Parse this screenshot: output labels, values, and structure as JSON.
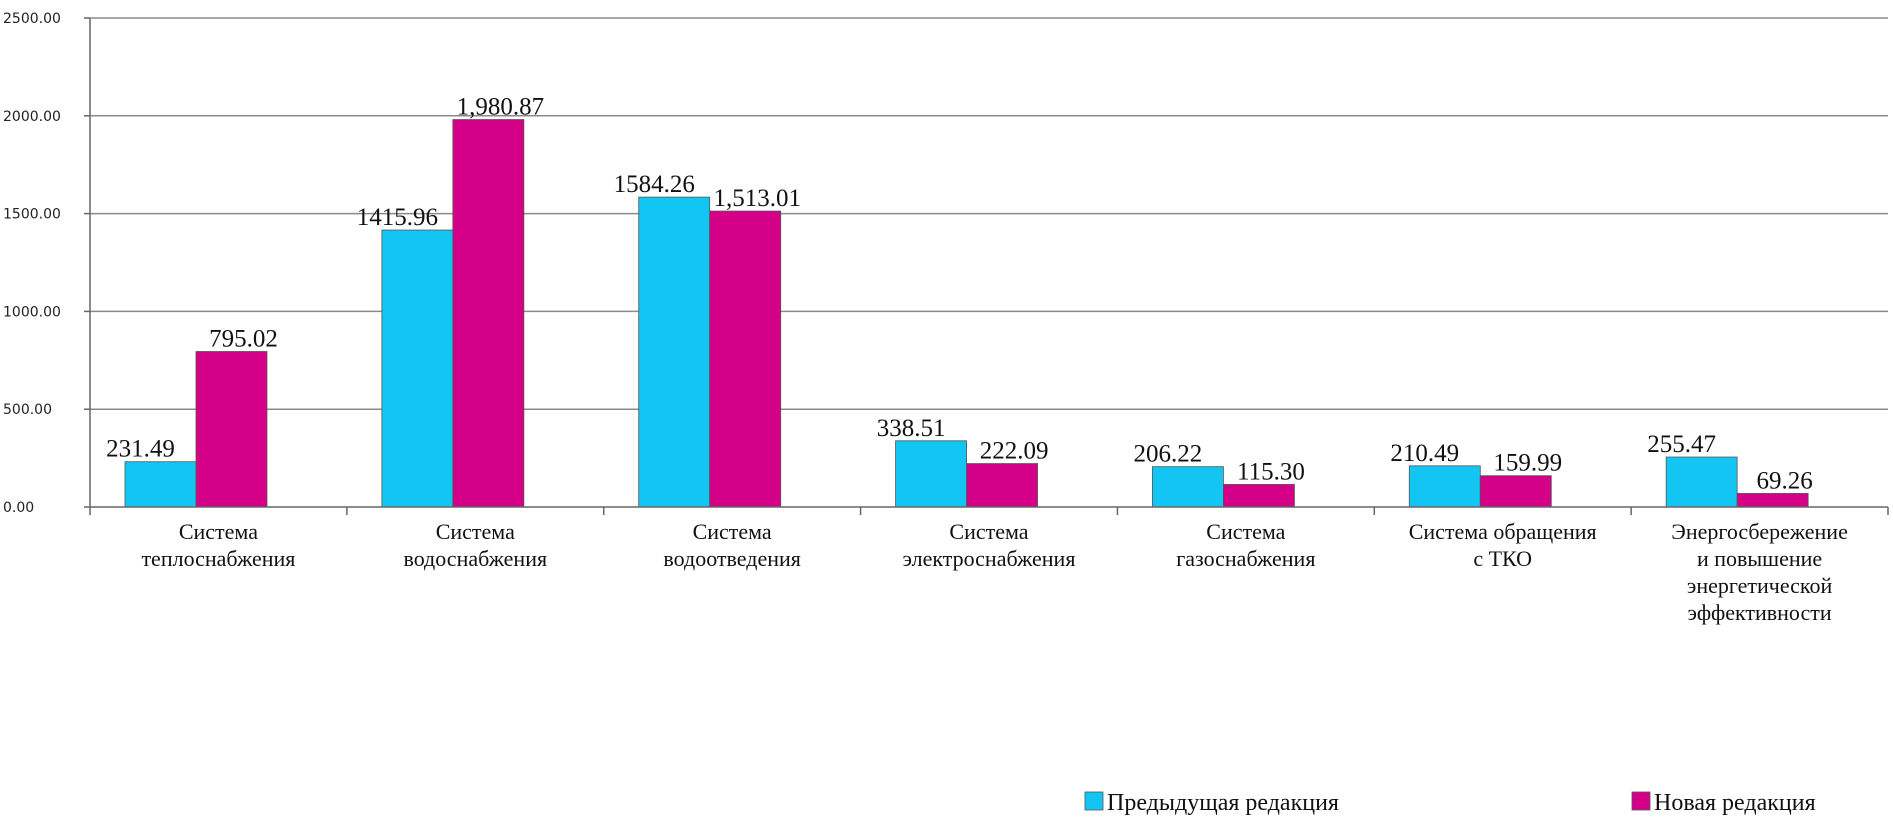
{
  "chart_data": {
    "type": "bar",
    "categories": [
      [
        "Система",
        "теплоснабжения"
      ],
      [
        "Система",
        "водоснабжения"
      ],
      [
        "Система",
        "водоотведения"
      ],
      [
        "Система",
        "электроснабжения"
      ],
      [
        "Система",
        "газоснабжения"
      ],
      [
        "Система обращения",
        "с ТКО"
      ],
      [
        "Энергосбережение",
        "и повышение",
        "энергетической",
        "эффективности"
      ]
    ],
    "series": [
      {
        "name": "Предыдущая редакция",
        "color": "#12c5f2",
        "values": [
          231.49,
          1415.96,
          1584.26,
          338.51,
          206.22,
          210.49,
          255.47
        ],
        "labels": [
          "231.49",
          "1415.96",
          "1584.26",
          "338.51",
          "206.22",
          "210.49",
          "255.47"
        ]
      },
      {
        "name": "Новая редакция",
        "color": "#d40087",
        "values": [
          795.02,
          1980.87,
          1513.01,
          222.09,
          115.3,
          159.99,
          69.26
        ],
        "labels": [
          "795.02",
          "1,980.87",
          "1,513.01",
          "222.09",
          "115.30",
          "159.99",
          "69.26"
        ]
      }
    ],
    "ylim": [
      0,
      2500
    ],
    "yticks": [
      "0.00",
      "500.00",
      "1000.00",
      "1500.00",
      "2000.00",
      "2500.00"
    ],
    "grid": true,
    "legend": "bottom-right"
  }
}
